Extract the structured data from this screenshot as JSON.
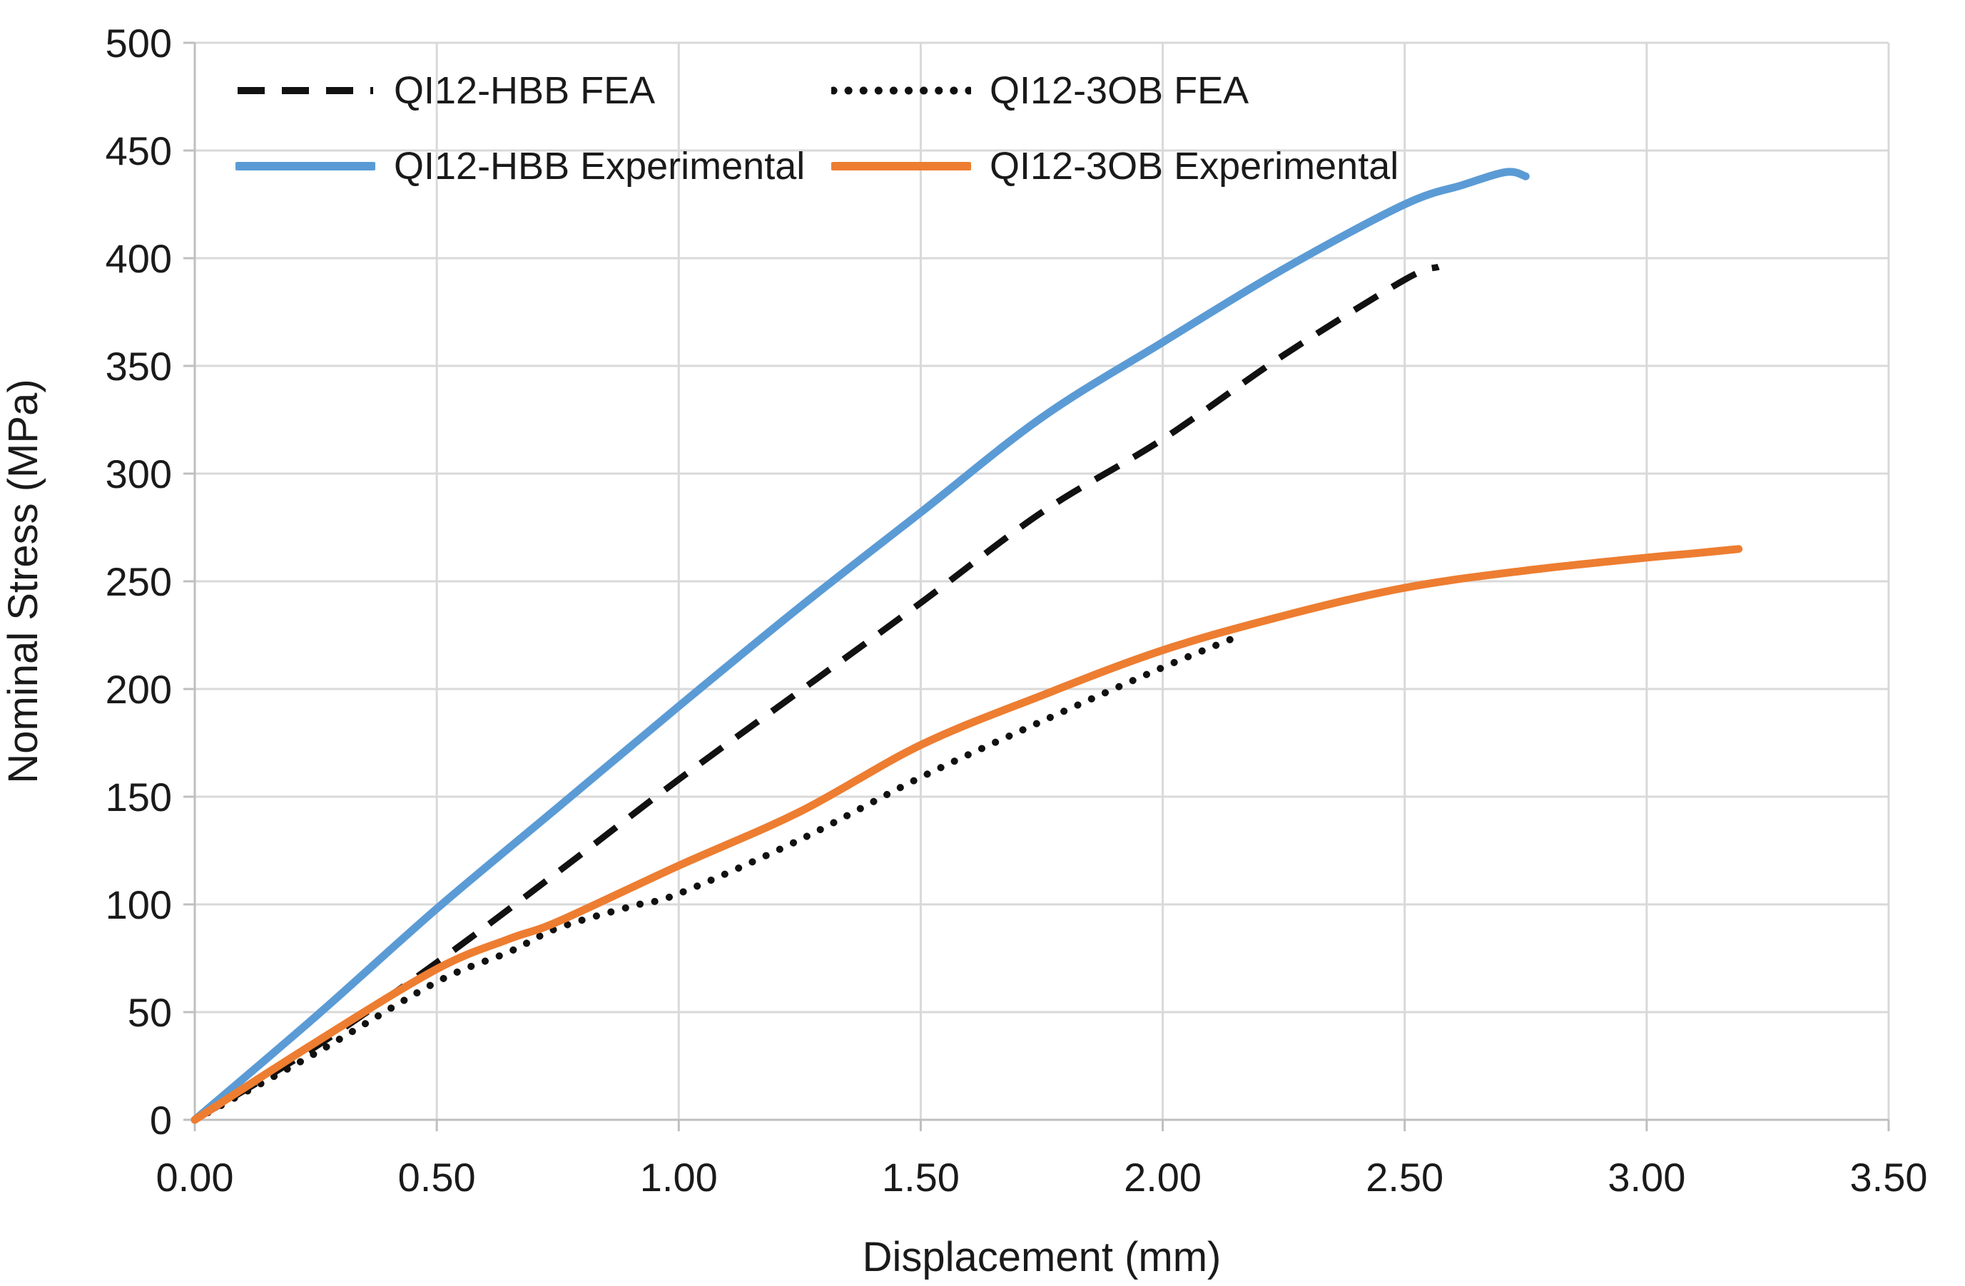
{
  "chart_data": {
    "type": "line",
    "title": "",
    "xlabel": "Displacement (mm)",
    "ylabel": "Nominal Stress (MPa)",
    "xlim": [
      0,
      3.5
    ],
    "ylim": [
      0,
      500
    ],
    "grid": true,
    "legend_position": "top-left-inside",
    "colors": {
      "gridline": "#d9d9d9",
      "axis_line": "#bfbfbf",
      "text": "#1a1a1a",
      "blue_accent": "#5b9bd5",
      "orange_accent": "#ed7d31",
      "black_series": "#111111"
    },
    "x_ticks": [
      {
        "v": 0.0,
        "label": "0.00"
      },
      {
        "v": 0.5,
        "label": "0.50"
      },
      {
        "v": 1.0,
        "label": "1.00"
      },
      {
        "v": 1.5,
        "label": "1.50"
      },
      {
        "v": 2.0,
        "label": "2.00"
      },
      {
        "v": 2.5,
        "label": "2.50"
      },
      {
        "v": 3.0,
        "label": "3.00"
      },
      {
        "v": 3.5,
        "label": "3.50"
      }
    ],
    "y_ticks": [
      {
        "v": 0,
        "label": "0"
      },
      {
        "v": 50,
        "label": "50"
      },
      {
        "v": 100,
        "label": "100"
      },
      {
        "v": 150,
        "label": "150"
      },
      {
        "v": 200,
        "label": "200"
      },
      {
        "v": 250,
        "label": "250"
      },
      {
        "v": 300,
        "label": "300"
      },
      {
        "v": 350,
        "label": "350"
      },
      {
        "v": 400,
        "label": "400"
      },
      {
        "v": 450,
        "label": "450"
      },
      {
        "v": 500,
        "label": "500"
      }
    ],
    "series": [
      {
        "name": "QI12-HBB FEA",
        "color": "#111111",
        "style": "dashed",
        "points": [
          [
            0,
            0
          ],
          [
            0.25,
            34
          ],
          [
            0.5,
            73
          ],
          [
            0.75,
            115
          ],
          [
            1,
            158
          ],
          [
            1.25,
            199
          ],
          [
            1.5,
            240
          ],
          [
            1.75,
            282
          ],
          [
            2,
            316
          ],
          [
            2.25,
            355
          ],
          [
            2.5,
            390
          ],
          [
            2.57,
            396
          ]
        ]
      },
      {
        "name": "QI12-3OB FEA",
        "color": "#111111",
        "style": "dotted",
        "points": [
          [
            0,
            0
          ],
          [
            0.25,
            31
          ],
          [
            0.5,
            64
          ],
          [
            0.65,
            78
          ],
          [
            0.75,
            89
          ],
          [
            0.9,
            99
          ],
          [
            1,
            105
          ],
          [
            1.25,
            130
          ],
          [
            1.5,
            159
          ],
          [
            1.75,
            185
          ],
          [
            2,
            210
          ],
          [
            2.14,
            223
          ]
        ]
      },
      {
        "name": "QI12-HBB Experimental",
        "color": "#5b9bd5",
        "style": "solid",
        "points": [
          [
            0,
            0
          ],
          [
            0.25,
            48
          ],
          [
            0.5,
            98
          ],
          [
            0.75,
            145
          ],
          [
            1,
            192
          ],
          [
            1.25,
            238
          ],
          [
            1.5,
            282
          ],
          [
            1.75,
            326
          ],
          [
            2,
            361
          ],
          [
            2.25,
            395
          ],
          [
            2.5,
            425
          ],
          [
            2.62,
            434
          ],
          [
            2.71,
            440
          ],
          [
            2.75,
            438
          ]
        ]
      },
      {
        "name": "QI12-3OB Experimental",
        "color": "#ed7d31",
        "style": "solid",
        "points": [
          [
            0,
            0
          ],
          [
            0.25,
            36
          ],
          [
            0.5,
            70
          ],
          [
            0.65,
            84
          ],
          [
            0.75,
            92
          ],
          [
            1,
            118
          ],
          [
            1.25,
            143
          ],
          [
            1.5,
            174
          ],
          [
            1.75,
            197
          ],
          [
            2,
            218
          ],
          [
            2.25,
            234
          ],
          [
            2.5,
            247
          ],
          [
            2.75,
            255
          ],
          [
            3,
            261
          ],
          [
            3.1,
            263
          ],
          [
            3.19,
            265
          ]
        ]
      }
    ]
  }
}
